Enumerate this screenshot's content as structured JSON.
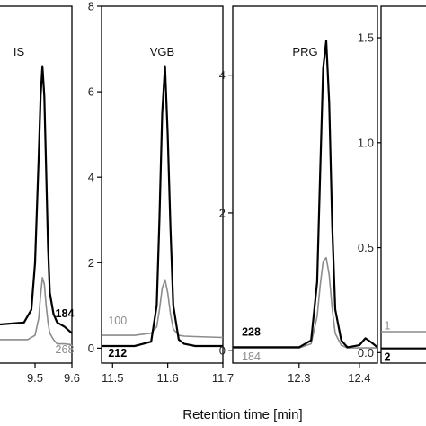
{
  "chart_data": {
    "type": "line",
    "xlabel": "Retention time [min]",
    "colors": {
      "primary": "#000000",
      "secondary": "#8c8c8c",
      "axis": "#000000"
    },
    "panels": [
      {
        "peak_label": "IS",
        "xlim": [
          9.4,
          9.6
        ],
        "ylim": [
          -0.35,
          8
        ],
        "yticks": [],
        "ytick_labels": [],
        "xticks": [
          9.5,
          9.6
        ],
        "xtick_labels": [
          "9.5",
          "9.6"
        ],
        "series": [
          {
            "name": "184",
            "x": [
              9.4,
              9.47,
              9.49,
              9.5,
              9.51,
              9.515,
              9.52,
              9.525,
              9.53,
              9.535,
              9.54,
              9.55,
              9.56,
              9.57,
              9.58,
              9.6
            ],
            "y": [
              0.55,
              0.6,
              0.9,
              2.0,
              4.5,
              5.9,
              6.6,
              5.9,
              4.2,
              2.4,
              1.3,
              0.8,
              0.6,
              0.55,
              0.5,
              0.35
            ]
          },
          {
            "name": "268",
            "x": [
              9.4,
              9.48,
              9.5,
              9.51,
              9.515,
              9.52,
              9.525,
              9.53,
              9.535,
              9.54,
              9.55,
              9.56,
              9.58,
              9.6
            ],
            "y": [
              0.2,
              0.2,
              0.3,
              0.7,
              1.25,
              1.65,
              1.5,
              1.0,
              0.6,
              0.35,
              0.2,
              0.1,
              0.1,
              0.08
            ]
          }
        ],
        "series_labels": [
          {
            "text": "184",
            "x": 9.555,
            "y": 0.72,
            "style": "primary"
          },
          {
            "text": "268",
            "x": 9.555,
            "y": -0.12,
            "style": "secondary"
          }
        ]
      },
      {
        "peak_label": "VGB",
        "xlim": [
          11.48,
          11.7
        ],
        "ylim": [
          -0.35,
          8
        ],
        "yticks": [
          0,
          2,
          4,
          6,
          8
        ],
        "ytick_labels": [
          "0",
          "2",
          "4",
          "6",
          "8"
        ],
        "xticks": [
          11.5,
          11.6,
          11.7
        ],
        "xtick_labels": [
          "11.5",
          "11.6",
          "11.7"
        ],
        "series": [
          {
            "name": "212",
            "x": [
              11.48,
              11.54,
              11.57,
              11.58,
              11.585,
              11.59,
              11.595,
              11.6,
              11.605,
              11.61,
              11.62,
              11.63,
              11.65,
              11.7
            ],
            "y": [
              0.05,
              0.05,
              0.15,
              1.0,
              3.0,
              5.5,
              6.6,
              5.0,
              2.8,
              1.0,
              0.2,
              0.1,
              0.05,
              0.05
            ]
          },
          {
            "name": "100",
            "x": [
              11.48,
              11.54,
              11.57,
              11.58,
              11.585,
              11.59,
              11.595,
              11.6,
              11.605,
              11.61,
              11.62,
              11.63,
              11.65,
              11.7
            ],
            "y": [
              0.3,
              0.3,
              0.35,
              0.5,
              0.9,
              1.4,
              1.6,
              1.3,
              0.8,
              0.45,
              0.3,
              0.28,
              0.27,
              0.25
            ]
          }
        ],
        "series_labels": [
          {
            "text": "100",
            "x": 11.492,
            "y": 0.55,
            "style": "secondary"
          },
          {
            "text": "212",
            "x": 11.492,
            "y": -0.2,
            "style": "primary"
          }
        ]
      },
      {
        "peak_label": "PRG",
        "xlim": [
          12.19,
          12.43
        ],
        "ylim": [
          -0.18,
          5.0
        ],
        "yticks": [
          0,
          2,
          4
        ],
        "ytick_labels": [
          "0",
          "2",
          "4"
        ],
        "xticks": [
          12.3,
          12.4
        ],
        "xtick_labels": [
          "12.3",
          "12.4"
        ],
        "series": [
          {
            "name": "228",
            "x": [
              12.19,
              12.3,
              12.32,
              12.33,
              12.335,
              12.34,
              12.345,
              12.35,
              12.355,
              12.36,
              12.37,
              12.38,
              12.4,
              12.41,
              12.42,
              12.43
            ],
            "y": [
              0.05,
              0.05,
              0.15,
              1.0,
              2.6,
              4.1,
              4.5,
              3.6,
              1.8,
              0.6,
              0.15,
              0.05,
              0.08,
              0.18,
              0.12,
              0.05
            ]
          },
          {
            "name": "184",
            "x": [
              12.19,
              12.3,
              12.32,
              12.33,
              12.335,
              12.34,
              12.345,
              12.35,
              12.355,
              12.36,
              12.37,
              12.38,
              12.43
            ],
            "y": [
              0.04,
              0.04,
              0.1,
              0.5,
              0.95,
              1.3,
              1.35,
              1.1,
              0.6,
              0.25,
              0.08,
              0.04,
              0.04
            ]
          }
        ],
        "series_labels": [
          {
            "text": "228",
            "x": 12.205,
            "y": 0.22,
            "style": "primary"
          },
          {
            "text": "184",
            "x": 12.205,
            "y": -0.14,
            "style": "secondary"
          }
        ]
      },
      {
        "peak_label": "",
        "xlim": [
          12.4,
          12.8
        ],
        "ylim": [
          -0.05,
          1.65
        ],
        "yticks": [
          0.0,
          0.5,
          1.0,
          1.5
        ],
        "ytick_labels": [
          "0.0",
          "0.5",
          "1.0",
          "1.5"
        ],
        "xticks": [],
        "xtick_labels": [],
        "series": [
          {
            "name": "",
            "x": [
              12.4,
              12.8
            ],
            "y": [
              0.02,
              0.02
            ]
          },
          {
            "name": "",
            "x": [
              12.4,
              12.8
            ],
            "y": [
              0.1,
              0.1
            ]
          }
        ],
        "series_labels": [
          {
            "text": "1",
            "x": 12.425,
            "y": 0.11,
            "style": "secondary"
          },
          {
            "text": "2",
            "x": 12.425,
            "y": -0.04,
            "style": "primary"
          }
        ]
      }
    ]
  }
}
